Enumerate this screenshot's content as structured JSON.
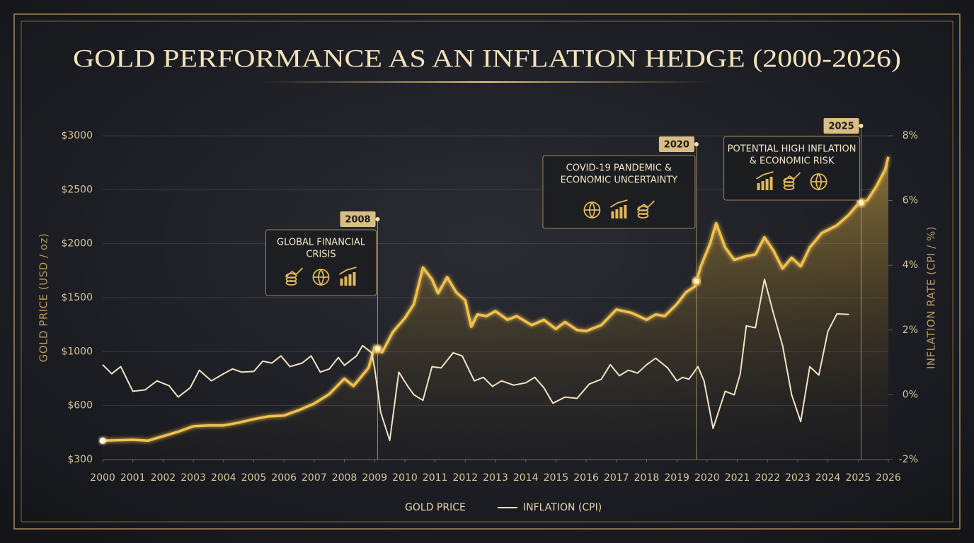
{
  "chart_data": {
    "type": "line",
    "title": "GOLD PERFORMANCE AS AN INFLATION HEDGE (2000-2026)",
    "ylabel": "GOLD PRICE (USD / oz)",
    "y2label": "INFLATION RATE (CPI / %)",
    "xlim": [
      2000,
      2026
    ],
    "xticks": [
      2000,
      2001,
      2002,
      2003,
      2004,
      2005,
      2006,
      2007,
      2008,
      2009,
      2010,
      2011,
      2012,
      2013,
      2014,
      2015,
      2016,
      2017,
      2018,
      2019,
      2020,
      2021,
      2022,
      2023,
      2024,
      2025,
      2026
    ],
    "ylim": [
      300,
      3000
    ],
    "yticks": [
      {
        "value": 300,
        "label": "$300"
      },
      {
        "value": 600,
        "label": "$600"
      },
      {
        "value": 1000,
        "label": "$1000"
      },
      {
        "value": 1500,
        "label": "$1500"
      },
      {
        "value": 2000,
        "label": "$2000"
      },
      {
        "value": 2500,
        "label": "$2500"
      },
      {
        "value": 3000,
        "label": "$3000"
      }
    ],
    "y2lim": [
      -2,
      8
    ],
    "y2ticks": [
      {
        "value": -2,
        "label": "-2%"
      },
      {
        "value": 0,
        "label": "0%"
      },
      {
        "value": 2,
        "label": "2%"
      },
      {
        "value": 4,
        "label": "4%"
      },
      {
        "value": 6,
        "label": "6%"
      },
      {
        "value": 8,
        "label": "8%"
      }
    ],
    "grid": true,
    "legend": "bottom",
    "series": [
      {
        "name": "GOLD PRICE",
        "color": "#f2c14e",
        "x": [
          2000,
          2001,
          2001.5,
          2002,
          2002.5,
          2003,
          2003.5,
          2004,
          2004.5,
          2005,
          2005.5,
          2006,
          2006.5,
          2007,
          2007.5,
          2008,
          2008.3,
          2008.8,
          2009,
          2009.25,
          2009.6,
          2010,
          2010.3,
          2010.6,
          2010.9,
          2011.1,
          2011.4,
          2011.7,
          2012,
          2012.2,
          2012.4,
          2012.7,
          2013,
          2013.4,
          2013.7,
          2014.2,
          2014.6,
          2015,
          2015.3,
          2015.7,
          2016,
          2016.5,
          2017,
          2017.5,
          2018,
          2018.3,
          2018.6,
          2019,
          2019.3,
          2019.6,
          2019.8,
          2020.1,
          2020.3,
          2020.6,
          2020.9,
          2021.3,
          2021.6,
          2021.9,
          2022.2,
          2022.5,
          2022.8,
          2023.1,
          2023.4,
          2023.8,
          2024.3,
          2024.7,
          2025,
          2025.3,
          2025.6,
          2025.9,
          2026
        ],
        "values": [
          405,
          410,
          405,
          430,
          455,
          485,
          490,
          490,
          505,
          525,
          540,
          545,
          575,
          615,
          685,
          800,
          745,
          880,
          1045,
          995,
          1180,
          1310,
          1440,
          1780,
          1670,
          1540,
          1690,
          1550,
          1475,
          1230,
          1345,
          1330,
          1375,
          1295,
          1330,
          1245,
          1295,
          1210,
          1275,
          1200,
          1190,
          1245,
          1390,
          1360,
          1295,
          1345,
          1330,
          1440,
          1550,
          1605,
          1795,
          2000,
          2190,
          1965,
          1850,
          1885,
          1900,
          2060,
          1935,
          1770,
          1870,
          1790,
          1965,
          2100,
          2170,
          2270,
          2370,
          2400,
          2530,
          2690,
          2805
        ]
      },
      {
        "name": "INFLATION (CPI)",
        "color": "#f1e4c3",
        "axis": "y2",
        "x": [
          2000,
          2000.3,
          2000.6,
          2001,
          2001.4,
          2001.8,
          2002.2,
          2002.5,
          2002.9,
          2003.2,
          2003.6,
          2004,
          2004.3,
          2004.6,
          2005,
          2005.3,
          2005.6,
          2005.9,
          2006.2,
          2006.6,
          2006.9,
          2007.2,
          2007.5,
          2007.8,
          2008,
          2008.4,
          2008.6,
          2008.9,
          2009,
          2009.2,
          2009.5,
          2009.8,
          2010.1,
          2010.3,
          2010.6,
          2010.9,
          2011.2,
          2011.6,
          2011.9,
          2012.3,
          2012.6,
          2012.9,
          2013.2,
          2013.6,
          2014,
          2014.3,
          2014.6,
          2014.9,
          2015.3,
          2015.7,
          2016.1,
          2016.5,
          2016.8,
          2017.1,
          2017.4,
          2017.7,
          2018,
          2018.3,
          2018.7,
          2019,
          2019.2,
          2019.4,
          2019.7,
          2019.9,
          2020.2,
          2020.6,
          2020.9,
          2021.1,
          2021.3,
          2021.6,
          2021.9,
          2022.2,
          2022.5,
          2022.8,
          2023.1,
          2023.4,
          2023.7,
          2024,
          2024.3,
          2024.7
        ],
        "values": [
          0.93,
          0.65,
          0.87,
          0.11,
          0.15,
          0.43,
          0.28,
          -0.07,
          0.22,
          0.76,
          0.43,
          0.65,
          0.8,
          0.7,
          0.72,
          1.04,
          0.98,
          1.2,
          0.87,
          0.98,
          1.2,
          0.7,
          0.8,
          1.15,
          0.91,
          1.2,
          1.52,
          1.3,
          0.83,
          -0.54,
          -1.41,
          0.7,
          0.26,
          0,
          -0.17,
          0.87,
          0.83,
          1.3,
          1.2,
          0.43,
          0.54,
          0.26,
          0.43,
          0.3,
          0.37,
          0.54,
          0.22,
          -0.26,
          -0.07,
          -0.11,
          0.33,
          0.48,
          0.93,
          0.59,
          0.76,
          0.67,
          0.93,
          1.13,
          0.83,
          0.43,
          0.54,
          0.48,
          0.87,
          0.43,
          -1.04,
          0.11,
          0,
          0.65,
          2.13,
          2.07,
          3.57,
          2.5,
          1.52,
          0,
          -0.83,
          0.87,
          0.61,
          1.96,
          2.5,
          2.48
        ]
      }
    ],
    "annotations": [
      {
        "label": "2008",
        "x": 2009.1,
        "lines": [
          "GLOBAL FINANCIAL",
          "CRISIS"
        ]
      },
      {
        "label": "2020",
        "x": 2019.65,
        "lines": [
          "COVID-19 PANDEMIC &",
          "ECONOMIC UNCERTAINTY"
        ]
      },
      {
        "label": "2025",
        "x": 2025.1,
        "lines": [
          "POTENTIAL HIGH INFLATION",
          "& ECONOMIC RISK"
        ]
      }
    ]
  }
}
